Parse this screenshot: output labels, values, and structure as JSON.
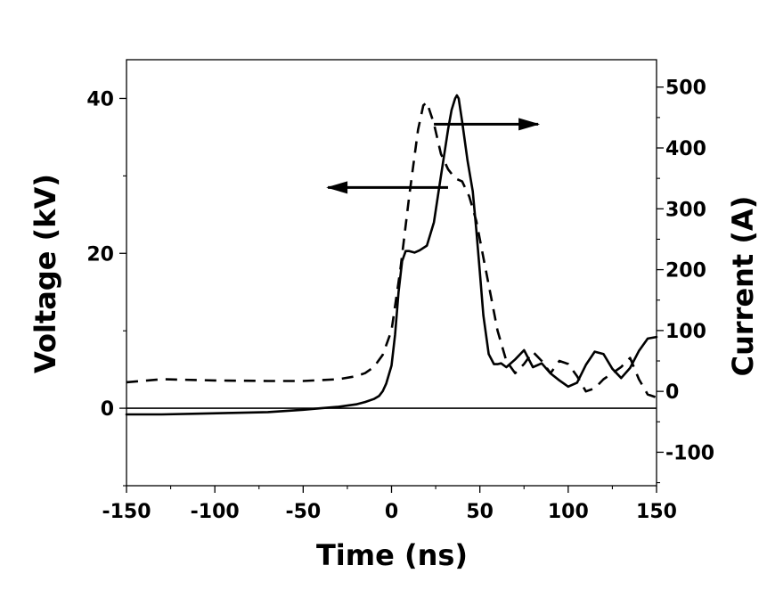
{
  "chart_data": {
    "type": "line",
    "xlabel": "Time (ns)",
    "ylabel_left": "Voltage (kV)",
    "ylabel_right": "Current (A)",
    "xlim": [
      -150,
      150
    ],
    "ylim_left": [
      -10,
      45
    ],
    "ylim_right": [
      -155,
      545
    ],
    "x_ticks": [
      -150,
      -100,
      -50,
      0,
      50,
      100,
      150
    ],
    "x_tick_labels": [
      "-150",
      "-100",
      "-50",
      "0",
      "50",
      "100",
      "150"
    ],
    "y_left_ticks": [
      0,
      20,
      40
    ],
    "y_left_tick_labels": [
      "0",
      "20",
      "40"
    ],
    "y_right_ticks": [
      -100,
      0,
      100,
      200,
      300,
      400,
      500
    ],
    "y_right_tick_labels": [
      "-100",
      "0",
      "100",
      "200",
      "300",
      "400",
      "500"
    ],
    "reference_line_voltage": 0,
    "series": [
      {
        "style": "solid",
        "axis": "left",
        "x": [
          -150,
          -130,
          -110,
          -90,
          -70,
          -50,
          -40,
          -30,
          -20,
          -15,
          -10,
          -7,
          -5,
          -3,
          0,
          2,
          4,
          6,
          8,
          10,
          13,
          16,
          20,
          24,
          27,
          30,
          32,
          34,
          36,
          37,
          38,
          40,
          43,
          46,
          48,
          50,
          52,
          55,
          58,
          60,
          62,
          65,
          70,
          75,
          80,
          85,
          90,
          95,
          100,
          105,
          110,
          115,
          120,
          125,
          130,
          135,
          140,
          145,
          150
        ],
        "y": [
          -0.8,
          -0.8,
          -0.7,
          -0.6,
          -0.5,
          -0.2,
          0,
          0.2,
          0.5,
          0.8,
          1.2,
          1.6,
          2.2,
          3.2,
          5.5,
          9.5,
          15,
          19,
          20.3,
          20.3,
          20.1,
          20.4,
          21,
          24,
          28.5,
          33,
          36,
          38.5,
          40,
          40.4,
          40,
          37,
          32,
          28,
          23,
          17.5,
          12,
          7,
          5.7,
          5.7,
          5.8,
          5.3,
          6.3,
          7.5,
          5.3,
          5.8,
          4.5,
          3.6,
          2.8,
          3.3,
          5.6,
          7.3,
          7,
          5.1,
          3.9,
          5.2,
          7.4,
          9,
          9.2
        ]
      },
      {
        "style": "dashed",
        "axis": "right",
        "x": [
          -150,
          -130,
          -100,
          -70,
          -50,
          -30,
          -20,
          -15,
          -10,
          -5,
          0,
          5,
          10,
          15,
          18,
          20,
          24,
          28,
          32,
          36,
          40,
          44,
          48,
          52,
          56,
          60,
          65,
          70,
          75,
          80,
          85,
          90,
          95,
          100,
          105,
          110,
          115,
          120,
          125,
          130,
          135,
          140,
          145,
          150
        ],
        "y": [
          15,
          20,
          18,
          17,
          17,
          20,
          25,
          30,
          40,
          60,
          100,
          200,
          320,
          430,
          470,
          475,
          440,
          390,
          365,
          350,
          345,
          320,
          280,
          220,
          160,
          100,
          50,
          30,
          45,
          65,
          50,
          30,
          50,
          45,
          25,
          0,
          5,
          20,
          30,
          40,
          55,
          20,
          -5,
          -10
        ]
      }
    ],
    "annotations": [
      {
        "type": "arrow",
        "direction": "left",
        "target_axis": "left"
      },
      {
        "type": "arrow",
        "direction": "right",
        "target_axis": "right"
      }
    ],
    "grid": false,
    "legend": "none"
  }
}
